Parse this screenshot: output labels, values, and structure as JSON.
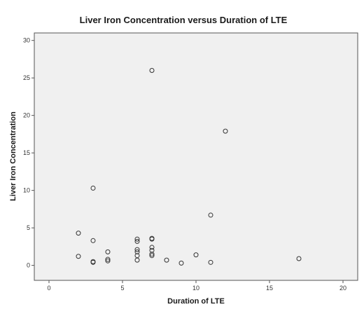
{
  "chart_data": {
    "type": "scatter",
    "title": "Liver Iron Concentration versus Duration of LTE",
    "xlabel": "Duration of LTE",
    "ylabel": "Liver Iron Concentration",
    "xlim": [
      -1,
      21
    ],
    "ylim": [
      -2,
      31
    ],
    "xticks": [
      0,
      5,
      10,
      15,
      20
    ],
    "yticks": [
      0,
      5,
      10,
      15,
      20,
      25,
      30
    ],
    "grid": false,
    "legend": "none",
    "colors": {
      "plot_background": "#f0f0f0",
      "frame": "#555555",
      "marker_stroke": "#333333"
    },
    "points": [
      {
        "x": 2,
        "y": 4.3
      },
      {
        "x": 2,
        "y": 1.2
      },
      {
        "x": 3,
        "y": 10.3
      },
      {
        "x": 3,
        "y": 3.3
      },
      {
        "x": 3,
        "y": 0.5
      },
      {
        "x": 3,
        "y": 0.4
      },
      {
        "x": 4,
        "y": 1.8
      },
      {
        "x": 4,
        "y": 0.8
      },
      {
        "x": 4,
        "y": 0.6
      },
      {
        "x": 6,
        "y": 3.5
      },
      {
        "x": 6,
        "y": 3.2
      },
      {
        "x": 6,
        "y": 2.1
      },
      {
        "x": 6,
        "y": 1.8
      },
      {
        "x": 6,
        "y": 1.3
      },
      {
        "x": 6,
        "y": 0.7
      },
      {
        "x": 7,
        "y": 26.0
      },
      {
        "x": 7,
        "y": 3.6
      },
      {
        "x": 7,
        "y": 3.5
      },
      {
        "x": 7,
        "y": 2.4
      },
      {
        "x": 7,
        "y": 2.0
      },
      {
        "x": 7,
        "y": 1.5
      },
      {
        "x": 7,
        "y": 1.3
      },
      {
        "x": 8,
        "y": 0.7
      },
      {
        "x": 9,
        "y": 0.3
      },
      {
        "x": 10,
        "y": 1.4
      },
      {
        "x": 11,
        "y": 6.7
      },
      {
        "x": 11,
        "y": 0.4
      },
      {
        "x": 12,
        "y": 17.9
      },
      {
        "x": 17,
        "y": 0.9
      }
    ]
  }
}
